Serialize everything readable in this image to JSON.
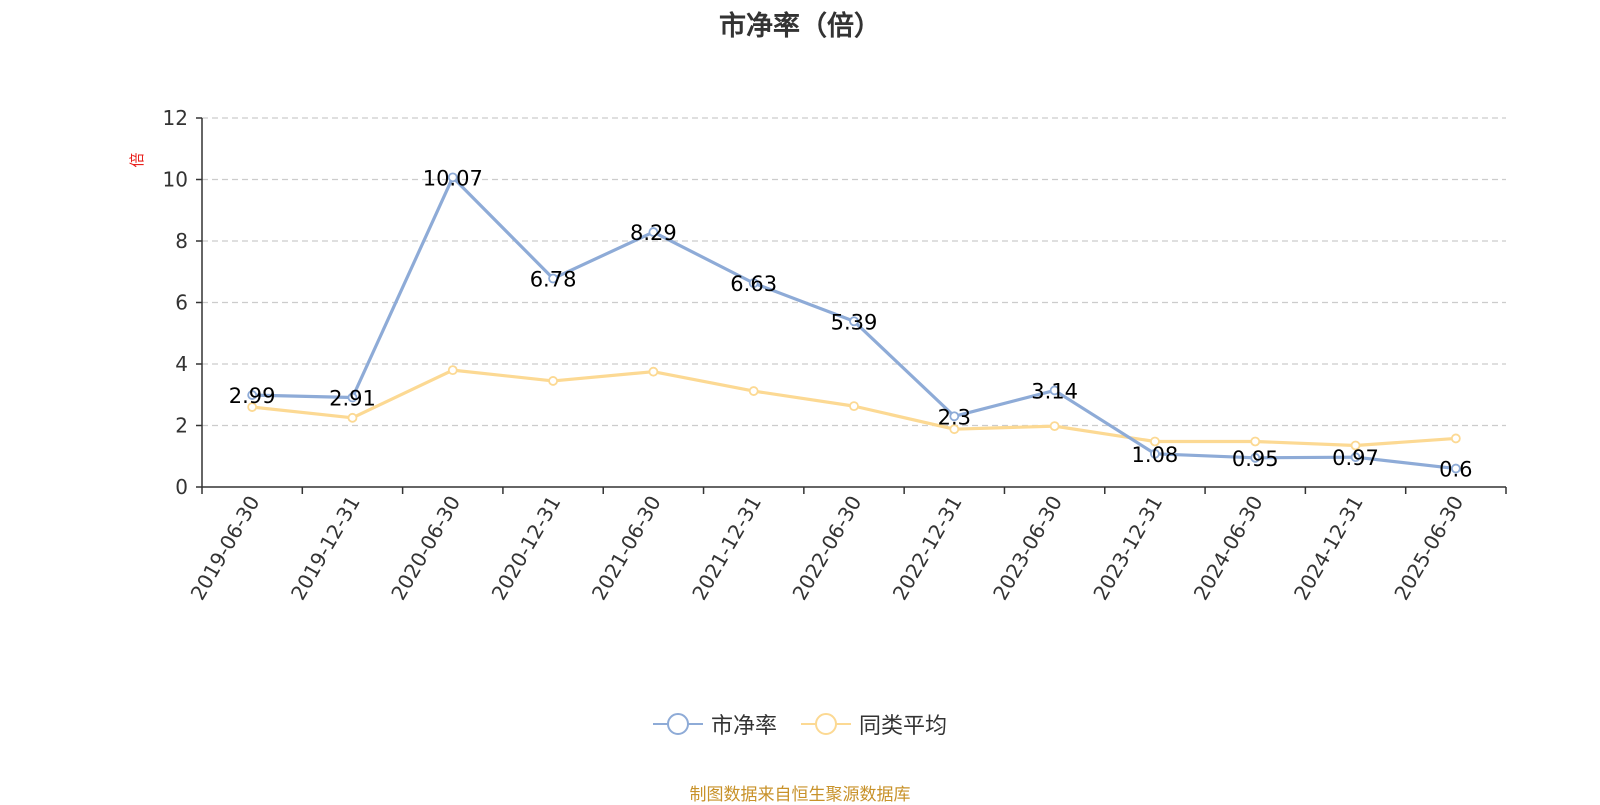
{
  "chart_data": {
    "type": "line",
    "title": "市净率（倍）",
    "ylabel": "倍",
    "ylim": [
      0,
      12
    ],
    "yticks": [
      0,
      2,
      4,
      6,
      8,
      10,
      12
    ],
    "grid": true,
    "legend_position": "bottom",
    "categories": [
      "2019-06-30",
      "2019-12-31",
      "2020-06-30",
      "2020-12-31",
      "2021-06-30",
      "2021-12-31",
      "2022-06-30",
      "2022-12-31",
      "2023-06-30",
      "2023-12-31",
      "2024-06-30",
      "2024-12-31",
      "2025-06-30"
    ],
    "series": [
      {
        "name": "市净率",
        "color": "#8eabd7",
        "values": [
          2.99,
          2.91,
          10.07,
          6.78,
          8.29,
          6.63,
          5.39,
          2.3,
          3.14,
          1.08,
          0.95,
          0.97,
          0.6
        ],
        "labels": [
          "2.99",
          "2.91",
          "10.07",
          "6.78",
          "8.29",
          "6.63",
          "5.39",
          "2.3",
          "3.14",
          "1.08",
          "0.95",
          "0.97",
          "0.6"
        ]
      },
      {
        "name": "同类平均",
        "color": "#fcd993",
        "values": [
          2.6,
          2.25,
          3.8,
          3.45,
          3.75,
          3.12,
          2.63,
          1.88,
          1.98,
          1.48,
          1.48,
          1.35,
          1.58
        ]
      }
    ]
  },
  "source": "制图数据来自恒生聚源数据库"
}
